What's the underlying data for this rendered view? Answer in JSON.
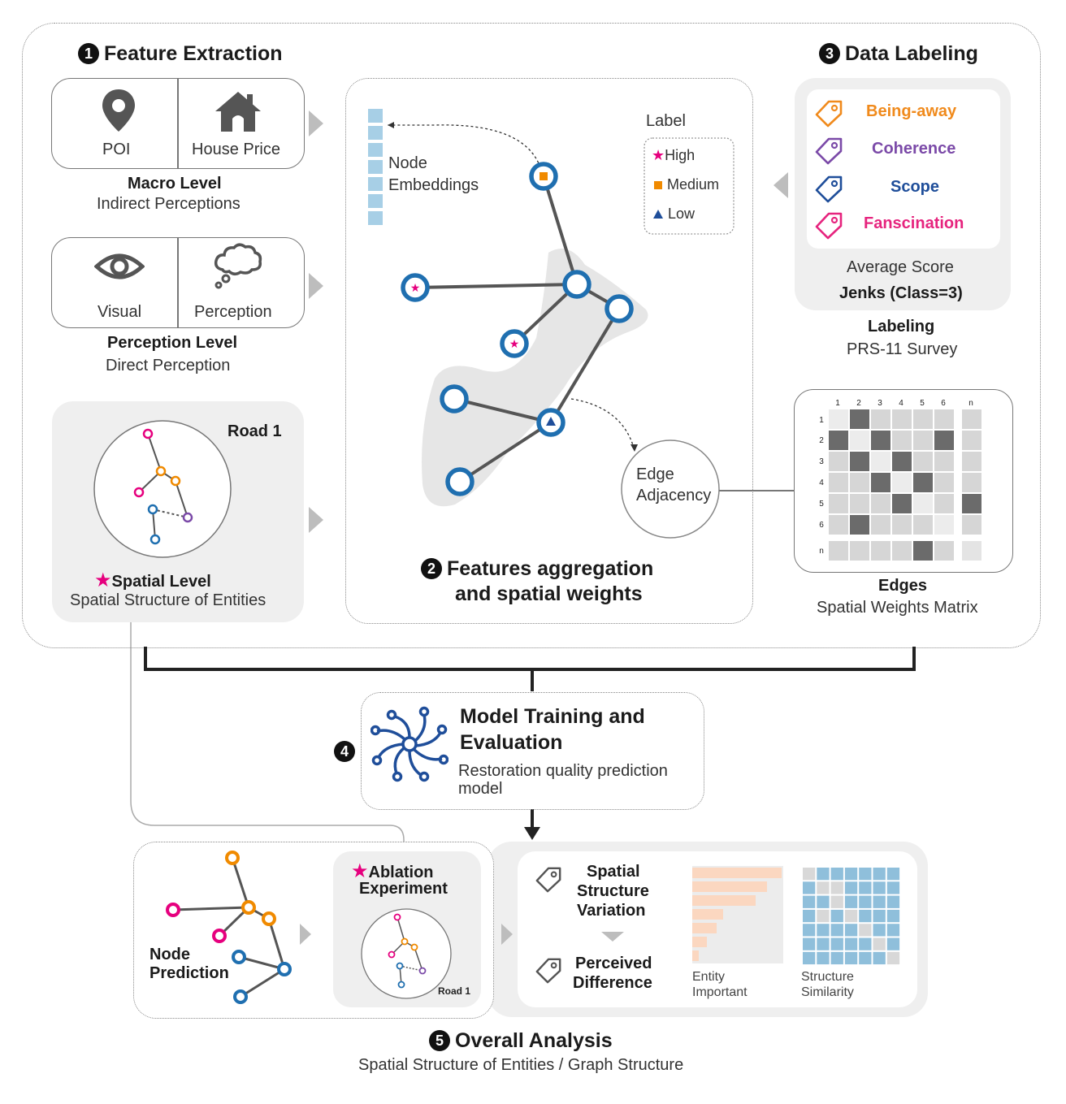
{
  "step1": {
    "num": "1",
    "title": "Feature Extraction"
  },
  "step2": {
    "num": "2",
    "title_line1": "Features aggregation",
    "title_line2": "and spatial weights"
  },
  "step3": {
    "num": "3",
    "title": "Data Labeling"
  },
  "step4": {
    "num": "4",
    "title_line1": "Model Training and",
    "title_line2": "Evaluation",
    "desc_line1": "Restoration quality prediction",
    "desc_line2": "model"
  },
  "step5": {
    "num": "5",
    "title": "Overall Analysis",
    "subtitle": "Spatial Structure of Entities / Graph Structure"
  },
  "macro": {
    "cell1": "POI",
    "cell2": "House Price",
    "title": "Macro Level",
    "subtitle": "Indirect Perceptions",
    "icon1": "location-pin-icon",
    "icon2": "house-icon"
  },
  "perception": {
    "cell1": "Visual",
    "cell2": "Perception",
    "title": "Perception Level",
    "subtitle": "Direct Perception",
    "icon1": "eye-icon",
    "icon2": "thought-cloud-icon"
  },
  "spatial": {
    "road": "Road 1",
    "title": "Spatial Level",
    "subtitle": "Spatial Structure of Entities"
  },
  "graph": {
    "embeddings_line1": "Node",
    "embeddings_line2": "Embeddings",
    "edge_line1": "Edge",
    "edge_line2": "Adjacency",
    "legend_title": "Label",
    "legend": [
      {
        "label": "High",
        "color": "#e6007e",
        "shape": "star"
      },
      {
        "label": "Medium",
        "color": "#f08a00",
        "shape": "square"
      },
      {
        "label": "Low",
        "color": "#1f4e9a",
        "shape": "triangle"
      }
    ]
  },
  "labeling": {
    "tags": [
      {
        "label": "Being-away",
        "color": "#f08a1c"
      },
      {
        "label": "Coherence",
        "color": "#7b4aa8"
      },
      {
        "label": "Scope",
        "color": "#1f4e9a"
      },
      {
        "label": "Fanscination",
        "color": "#e6247e"
      }
    ],
    "avg": "Average Score",
    "jenks": "Jenks (Class=3)",
    "title": "Labeling",
    "subtitle": "PRS-11 Survey"
  },
  "matrix": {
    "col_labels": [
      "1",
      "2",
      "3",
      "4",
      "5",
      "6",
      "n"
    ],
    "row_labels": [
      "1",
      "2",
      "3",
      "4",
      "5",
      "6",
      "n"
    ],
    "title": "Edges",
    "subtitle": "Spatial Weights Matrix"
  },
  "bottom": {
    "node_pred_line1": "Node",
    "node_pred_line2": "Prediction",
    "ablation_line1": "Ablation",
    "ablation_line2": "Experiment",
    "road": "Road 1",
    "ssv_line1": "Spatial",
    "ssv_line2": "Structure",
    "ssv_line3": "Variation",
    "pd_line1": "Perceived",
    "pd_line2": "Difference",
    "ent_line1": "Entity",
    "ent_line2": "Important",
    "ss_line1": "Structure",
    "ss_line2": "Similarity"
  },
  "colors": {
    "pink": "#e6007e",
    "orange": "#f08a00",
    "blue": "#1f6fb0",
    "purple": "#7b4aa8",
    "light_blue": "#a7cfe6",
    "peach": "#fbd7c0"
  }
}
